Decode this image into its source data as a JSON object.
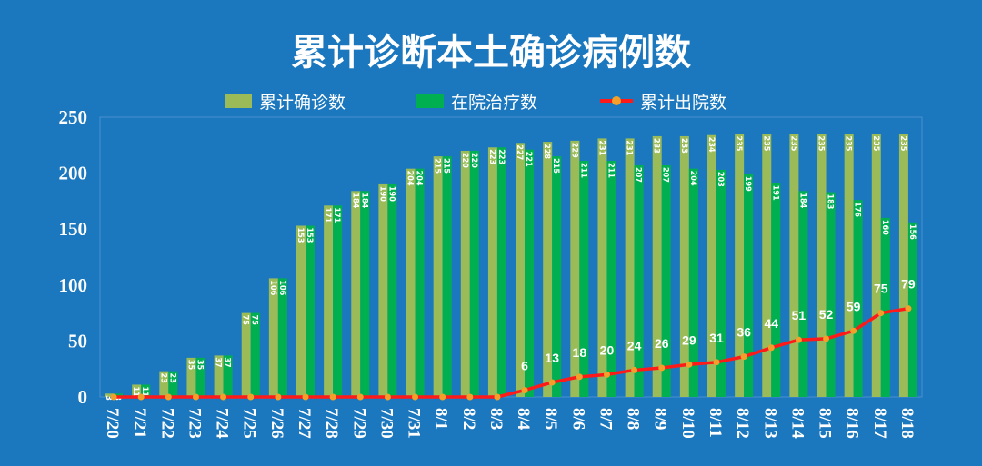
{
  "title": "累计诊断本土确诊病例数",
  "colors": {
    "background": "#1c78be",
    "confirmed": "#9bbb59",
    "hospitalized": "#00b050",
    "discharged_line": "#ff1a1a",
    "discharged_marker": "#f2a02a"
  },
  "legend": [
    {
      "label": "累计确诊数",
      "color": "#9bbb59",
      "kind": "bar"
    },
    {
      "label": "在院治疗数",
      "color": "#00b050",
      "kind": "bar"
    },
    {
      "label": "累计出院数",
      "color": "#ff1a1a",
      "kind": "line"
    }
  ],
  "chart_data": {
    "type": "bar",
    "title": "累计诊断本土确诊病例数",
    "xlabel": "",
    "ylabel": "",
    "ylim": [
      0,
      250
    ],
    "yticks": [
      0,
      50,
      100,
      150,
      200,
      250
    ],
    "grid": false,
    "legend_position": "top",
    "categories": [
      "7/20",
      "7/21",
      "7/22",
      "7/23",
      "7/24",
      "7/25",
      "7/26",
      "7/27",
      "7/28",
      "7/29",
      "7/30",
      "7/31",
      "8/1",
      "8/2",
      "8/3",
      "8/4",
      "8/5",
      "8/6",
      "8/7",
      "8/8",
      "8/9",
      "8/10",
      "8/11",
      "8/12",
      "8/13",
      "8/14",
      "8/15",
      "8/16",
      "8/17",
      "8/18"
    ],
    "series": [
      {
        "name": "累计确诊数",
        "type": "bar",
        "values": [
          3,
          11,
          23,
          35,
          37,
          75,
          106,
          153,
          171,
          184,
          190,
          204,
          215,
          220,
          223,
          227,
          228,
          229,
          231,
          231,
          233,
          233,
          234,
          235,
          235,
          235,
          235,
          235,
          235,
          235
        ]
      },
      {
        "name": "在院治疗数",
        "type": "bar",
        "values": [
          3,
          11,
          23,
          35,
          37,
          75,
          106,
          153,
          171,
          184,
          190,
          204,
          215,
          220,
          223,
          221,
          215,
          211,
          211,
          207,
          207,
          204,
          203,
          199,
          191,
          184,
          183,
          176,
          160,
          156
        ]
      },
      {
        "name": "累计出院数",
        "type": "line",
        "values": [
          0,
          0,
          0,
          0,
          0,
          0,
          0,
          0,
          0,
          0,
          0,
          0,
          0,
          0,
          0,
          6,
          13,
          18,
          20,
          24,
          26,
          29,
          31,
          36,
          44,
          51,
          52,
          59,
          75,
          79
        ],
        "label_from_index": 15
      }
    ]
  }
}
